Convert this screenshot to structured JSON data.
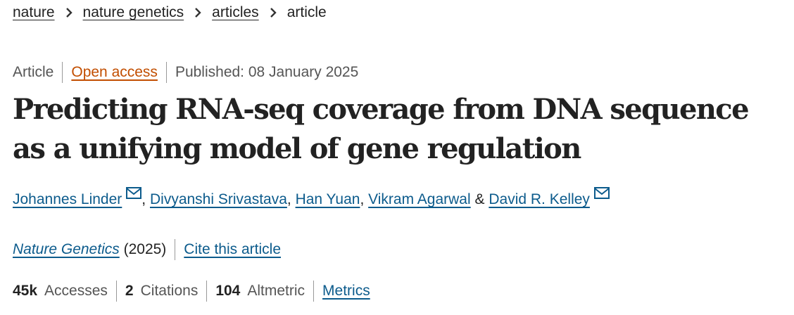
{
  "breadcrumb": {
    "items": [
      "nature",
      "nature genetics",
      "articles"
    ],
    "current": "article"
  },
  "meta": {
    "type": "Article",
    "access": "Open access",
    "published": "Published: 08 January 2025"
  },
  "title": "Predicting RNA-seq coverage from DNA sequence as a unifying model of gene regulation",
  "authors": {
    "list": [
      "Johannes Linder",
      "Divyanshi Srivastava",
      "Han Yuan",
      "Vikram Agarwal",
      "David R. Kelley"
    ],
    "separator_comma": ",",
    "separator_and": "&"
  },
  "journal": {
    "name": "Nature Genetics",
    "year": "(2025)",
    "cite_label": "Cite this article"
  },
  "metrics": {
    "accesses_value": "45k",
    "accesses_label": "Accesses",
    "citations_value": "2",
    "citations_label": "Citations",
    "altmetric_value": "104",
    "altmetric_label": "Altmetric",
    "metrics_link": "Metrics"
  },
  "colors": {
    "link": "#0c5b8c",
    "open_access": "#c24e00",
    "text": "#222222",
    "muted": "#555555"
  },
  "icons": {
    "breadcrumb_separator": "chevron-right-icon",
    "author_contact": "mail-icon"
  }
}
